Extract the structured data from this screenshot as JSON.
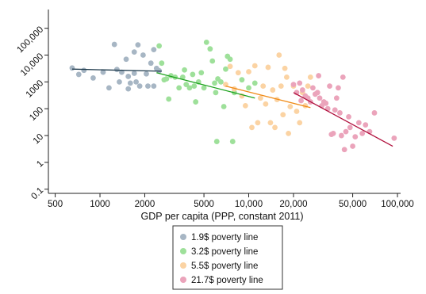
{
  "chart_data": {
    "type": "scatter",
    "xlabel": "GDP per capita (PPP, constant 2011)",
    "xscale": "log",
    "yscale": "log",
    "xlim": [
      450,
      105000
    ],
    "ylim": [
      0.07,
      500000
    ],
    "xticks": [
      500,
      1000,
      2000,
      5000,
      10000,
      20000,
      50000,
      100000
    ],
    "xtick_labels": [
      "500",
      "1000",
      "2000",
      "5000",
      "10,000",
      "20,000",
      "50,000",
      "100,000"
    ],
    "yticks": [
      0.1,
      1,
      10,
      100,
      1000,
      10000,
      100000
    ],
    "ytick_labels": [
      "0.1",
      "1",
      "10",
      "100",
      "1000",
      "10,000",
      "100,000"
    ],
    "grid": false,
    "legend_position": "bottom-center",
    "series": [
      {
        "name": "1.9$ poverty line",
        "color": "#a7b6c4",
        "line_color": "#1f3b4d",
        "fit_line": [
          [
            650,
            3000
          ],
          [
            2600,
            2500
          ]
        ],
        "points": [
          [
            650,
            3300
          ],
          [
            720,
            1900
          ],
          [
            780,
            2700
          ],
          [
            900,
            1400
          ],
          [
            1050,
            2300
          ],
          [
            1150,
            600
          ],
          [
            1250,
            25000
          ],
          [
            1300,
            2900
          ],
          [
            1350,
            1000
          ],
          [
            1400,
            2300
          ],
          [
            1500,
            7000
          ],
          [
            1550,
            1600
          ],
          [
            1550,
            550
          ],
          [
            1600,
            900
          ],
          [
            1700,
            13000
          ],
          [
            1700,
            2100
          ],
          [
            1750,
            1000
          ],
          [
            1800,
            24000
          ],
          [
            1850,
            700
          ],
          [
            1950,
            10000
          ],
          [
            2050,
            2000
          ],
          [
            2100,
            700
          ],
          [
            2200,
            5000
          ],
          [
            2300,
            16000
          ],
          [
            2300,
            700
          ],
          [
            2400,
            3200
          ],
          [
            2500,
            2600
          ]
        ]
      },
      {
        "name": "3.2$ poverty line",
        "color": "#9ee09a",
        "line_color": "#1fa31f",
        "fit_line": [
          [
            2400,
            2200
          ],
          [
            11000,
            250
          ]
        ],
        "points": [
          [
            2500,
            22000
          ],
          [
            2600,
            5000
          ],
          [
            2700,
            1200
          ],
          [
            2800,
            1300
          ],
          [
            2900,
            230
          ],
          [
            3000,
            1700
          ],
          [
            3200,
            1500
          ],
          [
            3400,
            600
          ],
          [
            3600,
            1500
          ],
          [
            3700,
            2800
          ],
          [
            3800,
            800
          ],
          [
            4000,
            600
          ],
          [
            4200,
            1900
          ],
          [
            4300,
            700
          ],
          [
            4400,
            180
          ],
          [
            4600,
            1000
          ],
          [
            4800,
            2200
          ],
          [
            5000,
            600
          ],
          [
            5200,
            30000
          ],
          [
            5500,
            17000
          ],
          [
            5700,
            6000
          ],
          [
            5900,
            900
          ],
          [
            6000,
            400
          ],
          [
            6100,
            6
          ],
          [
            6200,
            1300
          ],
          [
            6500,
            1000
          ],
          [
            6800,
            120
          ],
          [
            7000,
            3000
          ],
          [
            7200,
            9000
          ],
          [
            7500,
            7000
          ],
          [
            7800,
            6
          ],
          [
            8000,
            400
          ],
          [
            9000,
            1200
          ],
          [
            10000,
            600
          ],
          [
            11000,
            900
          ]
        ]
      },
      {
        "name": "5.5$ poverty line",
        "color": "#fbd3a3",
        "line_color": "#f08a16",
        "fit_line": [
          [
            7000,
            700
          ],
          [
            26000,
            110
          ]
        ],
        "points": [
          [
            7000,
            800
          ],
          [
            7500,
            3800
          ],
          [
            8000,
            550
          ],
          [
            8500,
            2200
          ],
          [
            9000,
            300
          ],
          [
            9500,
            130
          ],
          [
            10000,
            2400
          ],
          [
            10500,
            20
          ],
          [
            11000,
            4000
          ],
          [
            11500,
            30
          ],
          [
            12000,
            250
          ],
          [
            12500,
            700
          ],
          [
            13000,
            150
          ],
          [
            13500,
            3500
          ],
          [
            14000,
            30
          ],
          [
            14500,
            500
          ],
          [
            15000,
            20
          ],
          [
            15500,
            220
          ],
          [
            16000,
            10000
          ],
          [
            16500,
            700
          ],
          [
            17000,
            60
          ],
          [
            17500,
            3200
          ],
          [
            18000,
            1500
          ],
          [
            18500,
            12
          ],
          [
            19000,
            120
          ],
          [
            20000,
            700
          ],
          [
            21000,
            80
          ],
          [
            22000,
            30
          ],
          [
            23000,
            400
          ],
          [
            24000,
            130
          ],
          [
            25000,
            700
          ],
          [
            26000,
            1500
          ]
        ]
      },
      {
        "name": "21.7$ poverty line",
        "color": "#eba4bb",
        "line_color": "#b0103d",
        "fit_line": [
          [
            20000,
            400
          ],
          [
            93000,
            4
          ]
        ],
        "points": [
          [
            20000,
            800
          ],
          [
            21000,
            400
          ],
          [
            22000,
            900
          ],
          [
            22500,
            200
          ],
          [
            23000,
            500
          ],
          [
            24000,
            300
          ],
          [
            25000,
            250
          ],
          [
            26000,
            180
          ],
          [
            27000,
            600
          ],
          [
            28000,
            350
          ],
          [
            29000,
            400
          ],
          [
            29500,
            1700
          ],
          [
            30000,
            250
          ],
          [
            31000,
            130
          ],
          [
            32000,
            180
          ],
          [
            33000,
            160
          ],
          [
            34000,
            100
          ],
          [
            35000,
            700
          ],
          [
            36000,
            11
          ],
          [
            37000,
            12
          ],
          [
            38000,
            90
          ],
          [
            39000,
            250
          ],
          [
            40000,
            600
          ],
          [
            41000,
            70
          ],
          [
            42000,
            10
          ],
          [
            43000,
            1500
          ],
          [
            44000,
            3
          ],
          [
            45000,
            14
          ],
          [
            47000,
            50
          ],
          [
            48000,
            20
          ],
          [
            50000,
            4
          ],
          [
            52000,
            9
          ],
          [
            55000,
            30
          ],
          [
            58000,
            12
          ],
          [
            61000,
            25
          ],
          [
            65000,
            14
          ],
          [
            70000,
            70
          ],
          [
            95000,
            8
          ]
        ]
      }
    ]
  }
}
